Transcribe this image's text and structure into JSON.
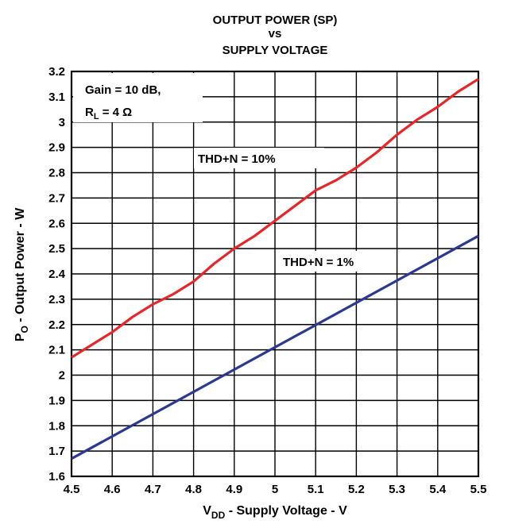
{
  "chart_data": {
    "type": "line",
    "title": [
      "OUTPUT POWER (SP)",
      "vs",
      "SUPPLY VOLTAGE"
    ],
    "xlabel": {
      "main": "V",
      "sub": "DD",
      "rest": " - Supply Voltage - V"
    },
    "ylabel": {
      "main": "P",
      "sub": "O",
      "rest": " - Output Power - W"
    },
    "xlim": [
      4.5,
      5.5
    ],
    "ylim": [
      1.6,
      3.2
    ],
    "xticks": [
      "4.5",
      "4.6",
      "4.7",
      "4.8",
      "4.9",
      "5",
      "5.1",
      "5.2",
      "5.3",
      "5.4",
      "5.5"
    ],
    "yticks": [
      "1.6",
      "1.7",
      "1.8",
      "1.9",
      "2",
      "2.1",
      "2.2",
      "2.3",
      "2.4",
      "2.5",
      "2.6",
      "2.7",
      "2.8",
      "2.9",
      "3",
      "3.1",
      "3.2"
    ],
    "grid": true,
    "annotation_box": {
      "line1": "Gain = 10 dB,",
      "line2_main": "R",
      "line2_sub": "L",
      "line2_rest": " = 4 Ω"
    },
    "series": [
      {
        "name": "THD+N = 10%",
        "color": "#e8262a",
        "x": [
          4.5,
          4.55,
          4.6,
          4.65,
          4.7,
          4.75,
          4.8,
          4.85,
          4.9,
          4.95,
          5.0,
          5.05,
          5.1,
          5.15,
          5.2,
          5.25,
          5.3,
          5.35,
          5.4,
          5.45,
          5.5
        ],
        "y": [
          2.07,
          2.12,
          2.17,
          2.23,
          2.28,
          2.32,
          2.37,
          2.44,
          2.5,
          2.55,
          2.61,
          2.67,
          2.73,
          2.77,
          2.82,
          2.88,
          2.95,
          3.01,
          3.06,
          3.12,
          3.17
        ]
      },
      {
        "name": "THD+N = 1%",
        "color": "#2b3990",
        "x": [
          4.5,
          5.5
        ],
        "y": [
          1.67,
          2.55
        ]
      }
    ]
  }
}
